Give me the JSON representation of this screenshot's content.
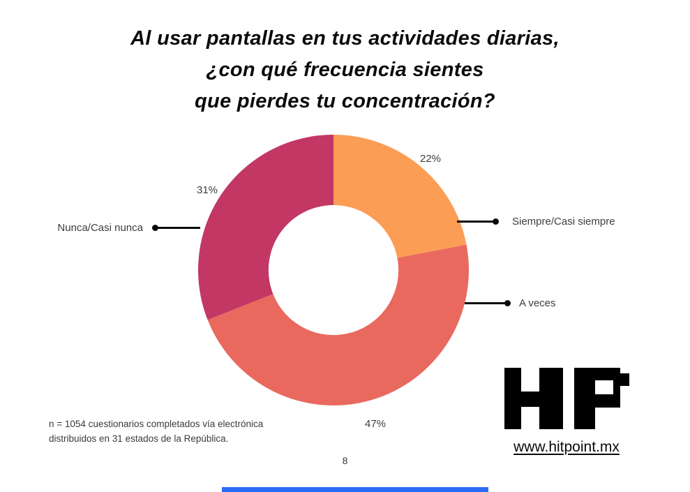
{
  "title": {
    "lines": [
      "Al usar pantallas en tus actividades diarias,",
      "¿con qué frecuencia sientes",
      "que pierdes tu concentración?"
    ]
  },
  "chart_data": {
    "type": "pie",
    "subtype": "donut",
    "title": "Al usar pantallas en tus actividades diarias, ¿con qué frecuencia sientes que pierdes tu concentración?",
    "categories": [
      "Siempre/Casi siempre",
      "A veces",
      "Nunca/Casi nunca"
    ],
    "values": [
      22,
      47,
      31
    ],
    "unit": "percent",
    "data_labels": [
      "22%",
      "47%",
      "31%"
    ],
    "colors": [
      "#FB9D55",
      "#E9695F",
      "#C33765"
    ],
    "start_angle_deg": 0,
    "direction": "clockwise",
    "inner_radius_ratio": 0.48,
    "legend_position": "callout-lines",
    "label_color": "#3d3d3d"
  },
  "footnote": {
    "lines": [
      "n = 1054 cuestionarios completados vía electrónica",
      "distribuidos en 31 estados de la República."
    ]
  },
  "page_number": "8",
  "logo": {
    "text": "HP",
    "website": "www.hitpoint.mx"
  },
  "accent_bar_color": "#2b6cf6"
}
